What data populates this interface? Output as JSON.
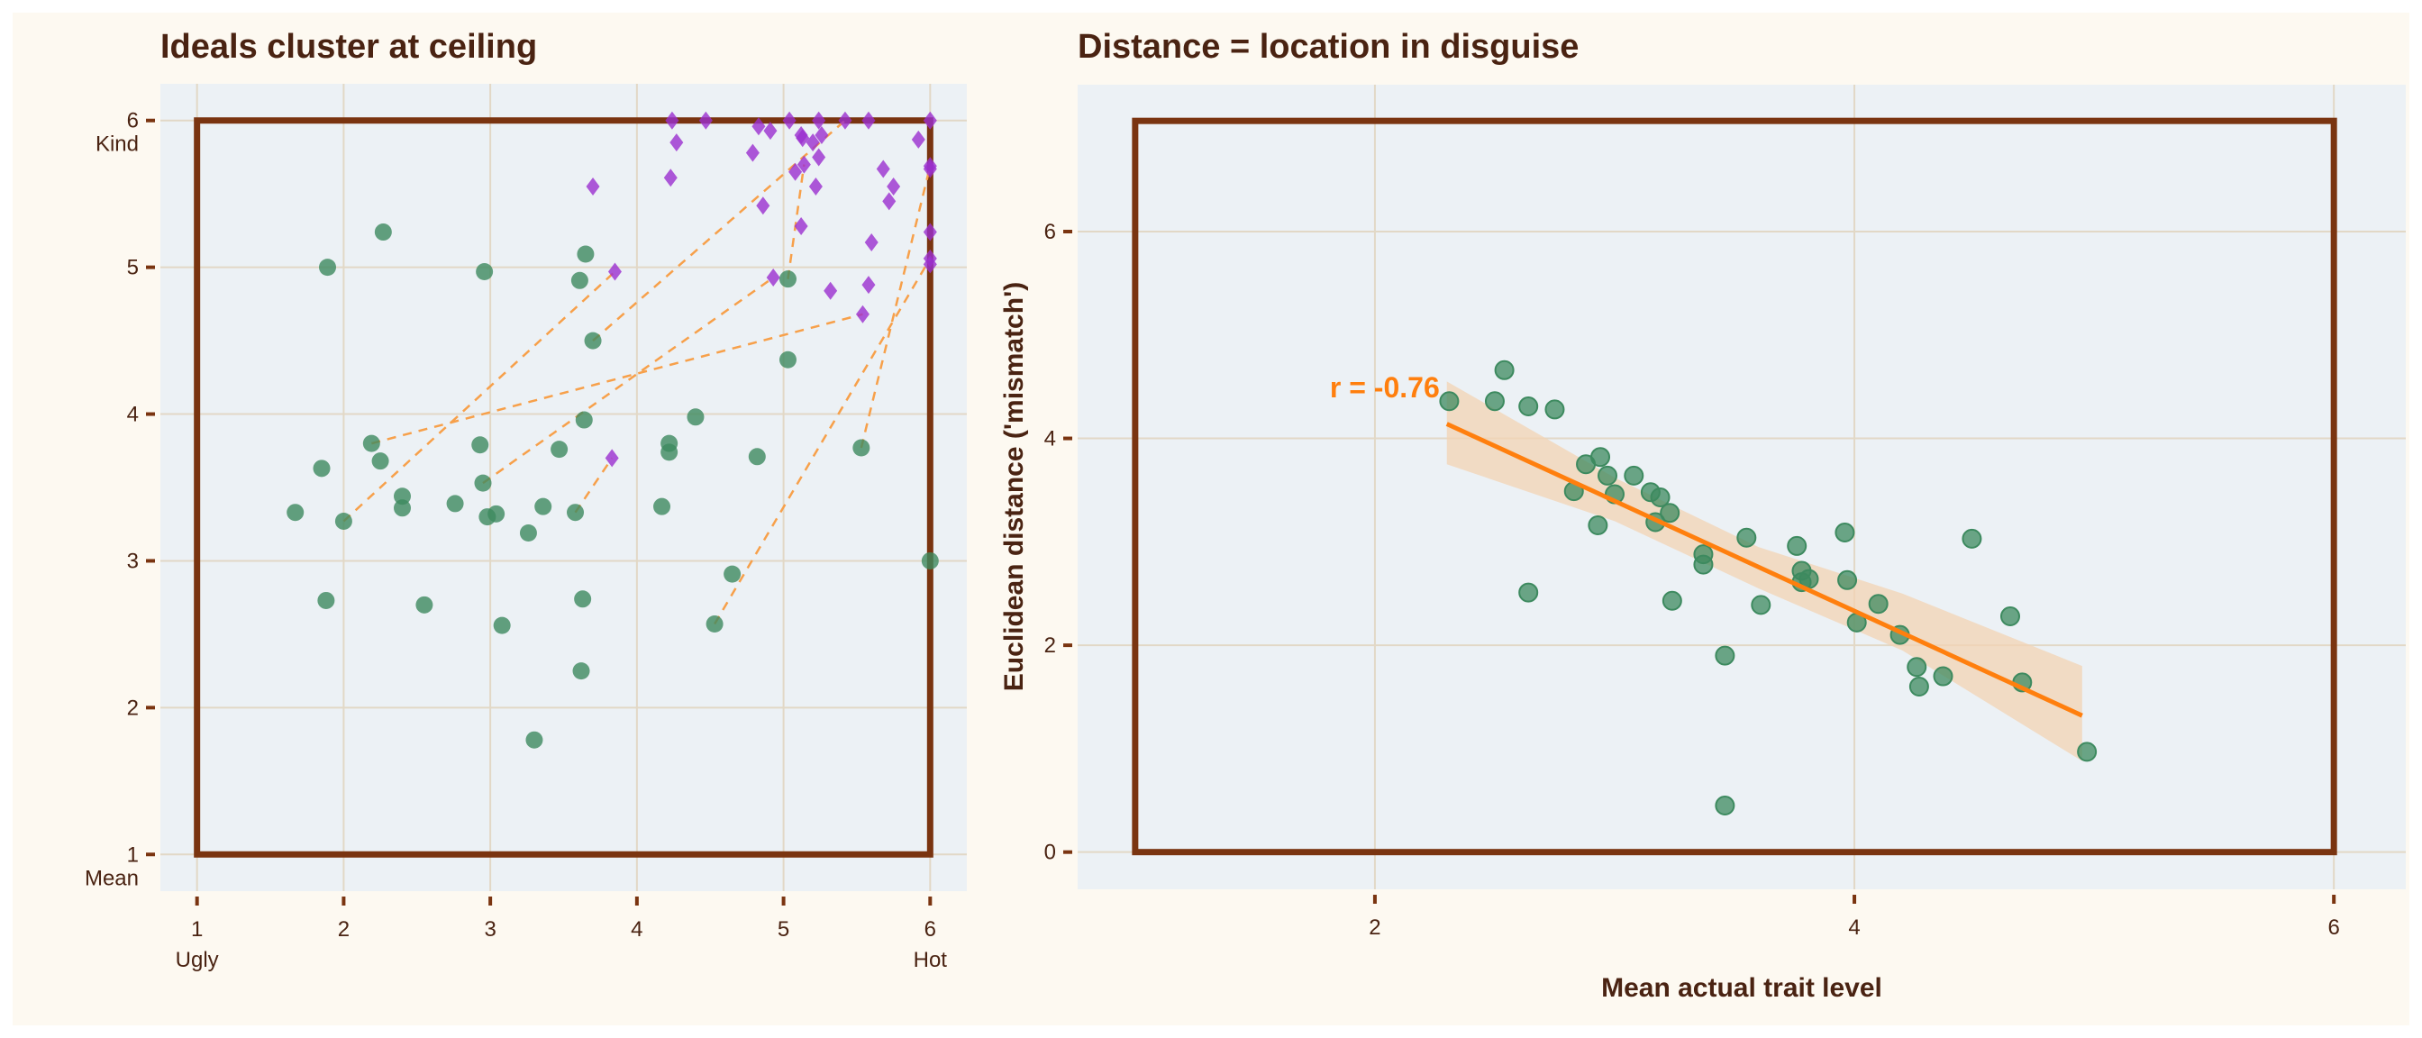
{
  "colors": {
    "background": "#fdf9f1",
    "panel": "#ecf1f5",
    "grid": "#e2d8c6",
    "box": "#7a3410",
    "actual": "#3d8a5f",
    "ideal": "#9b30d0",
    "link": "#f7a04a",
    "fit": "#ff7f0e",
    "band": "#f3d3b3",
    "text": "#4a2312"
  },
  "chart_data": [
    {
      "type": "scatter",
      "title": "Ideals cluster at ceiling",
      "xlim": [
        0.75,
        6.25
      ],
      "ylim": [
        0.75,
        6.25
      ],
      "x_ticks": [
        "1",
        "2",
        "3",
        "4",
        "5",
        "6"
      ],
      "y_ticks": [
        "1",
        "2",
        "3",
        "4",
        "5",
        "6"
      ],
      "x_tick_sublabels": {
        "low": "Ugly",
        "high": "Hot"
      },
      "y_tick_sublabels": {
        "low": "Mean",
        "high": "Kind"
      },
      "grid": true,
      "box": {
        "x": [
          1,
          6
        ],
        "y": [
          1,
          6
        ]
      },
      "actual_points": [
        [
          2.27,
          5.24
        ],
        [
          1.89,
          5.0
        ],
        [
          2.96,
          4.97
        ],
        [
          3.65,
          5.09
        ],
        [
          3.61,
          4.91
        ],
        [
          3.7,
          4.5
        ],
        [
          5.03,
          4.92
        ],
        [
          5.03,
          4.37
        ],
        [
          4.4,
          3.98
        ],
        [
          3.64,
          3.96
        ],
        [
          2.19,
          3.8
        ],
        [
          2.93,
          3.79
        ],
        [
          3.47,
          3.76
        ],
        [
          4.22,
          3.8
        ],
        [
          4.22,
          3.74
        ],
        [
          4.82,
          3.71
        ],
        [
          5.53,
          3.77
        ],
        [
          1.85,
          3.63
        ],
        [
          2.25,
          3.68
        ],
        [
          2.95,
          3.53
        ],
        [
          1.67,
          3.33
        ],
        [
          2.0,
          3.27
        ],
        [
          2.4,
          3.44
        ],
        [
          2.4,
          3.36
        ],
        [
          2.76,
          3.39
        ],
        [
          2.98,
          3.3
        ],
        [
          3.04,
          3.32
        ],
        [
          3.36,
          3.37
        ],
        [
          3.26,
          3.19
        ],
        [
          3.58,
          3.33
        ],
        [
          4.17,
          3.37
        ],
        [
          4.65,
          2.91
        ],
        [
          6.0,
          3.0
        ],
        [
          1.88,
          2.73
        ],
        [
          2.55,
          2.7
        ],
        [
          3.63,
          2.74
        ],
        [
          3.08,
          2.56
        ],
        [
          4.53,
          2.57
        ],
        [
          3.62,
          2.25
        ],
        [
          3.3,
          1.78
        ]
      ],
      "ideal_points": [
        [
          4.24,
          6.0
        ],
        [
          4.47,
          6.0
        ],
        [
          5.04,
          6.0
        ],
        [
          5.24,
          6.0
        ],
        [
          5.42,
          6.0
        ],
        [
          5.58,
          6.0
        ],
        [
          6.0,
          6.0
        ],
        [
          4.27,
          5.85
        ],
        [
          4.83,
          5.96
        ],
        [
          4.91,
          5.93
        ],
        [
          4.79,
          5.78
        ],
        [
          5.12,
          5.9
        ],
        [
          5.13,
          5.88
        ],
        [
          5.2,
          5.85
        ],
        [
          5.26,
          5.9
        ],
        [
          5.24,
          5.75
        ],
        [
          5.14,
          5.7
        ],
        [
          5.08,
          5.65
        ],
        [
          4.23,
          5.61
        ],
        [
          3.7,
          5.55
        ],
        [
          5.22,
          5.55
        ],
        [
          5.68,
          5.67
        ],
        [
          5.75,
          5.55
        ],
        [
          5.72,
          5.45
        ],
        [
          4.86,
          5.42
        ],
        [
          5.92,
          5.87
        ],
        [
          6.0,
          5.69
        ],
        [
          6.0,
          5.67
        ],
        [
          5.12,
          5.28
        ],
        [
          5.6,
          5.17
        ],
        [
          6.0,
          5.24
        ],
        [
          6.0,
          5.06
        ],
        [
          6.0,
          5.02
        ],
        [
          3.85,
          4.97
        ],
        [
          4.93,
          4.93
        ],
        [
          5.32,
          4.84
        ],
        [
          5.58,
          4.88
        ],
        [
          5.54,
          4.68
        ],
        [
          3.83,
          3.7
        ]
      ],
      "links": [
        [
          [
            2.0,
            3.27
          ],
          [
            3.85,
            4.97
          ]
        ],
        [
          [
            2.19,
            3.8
          ],
          [
            5.54,
            4.68
          ]
        ],
        [
          [
            2.95,
            3.53
          ],
          [
            4.93,
            4.93
          ]
        ],
        [
          [
            3.7,
            4.5
          ],
          [
            5.42,
            6.0
          ]
        ],
        [
          [
            3.58,
            3.33
          ],
          [
            3.83,
            3.7
          ]
        ],
        [
          [
            4.53,
            2.57
          ],
          [
            6.0,
            5.06
          ]
        ],
        [
          [
            5.53,
            3.77
          ],
          [
            6.0,
            5.69
          ]
        ],
        [
          [
            5.03,
            4.92
          ],
          [
            5.14,
            5.7
          ]
        ]
      ]
    },
    {
      "type": "scatter",
      "title": "Distance = location in disguise",
      "xlabel": "Mean actual trait level",
      "ylabel": "Euclidean distance ('mismatch')",
      "xlim": [
        0.76,
        6.3
      ],
      "ylim": [
        -0.36,
        7.42
      ],
      "x_ticks": [
        "2",
        "4",
        "6"
      ],
      "y_ticks": [
        "0",
        "2",
        "4",
        "6"
      ],
      "grid": true,
      "box": {
        "x": [
          1,
          6
        ],
        "y": [
          0,
          7.07
        ]
      },
      "annotation": "r = -0.76",
      "points": [
        [
          2.31,
          4.36
        ],
        [
          2.5,
          4.36
        ],
        [
          2.54,
          4.66
        ],
        [
          2.64,
          4.31
        ],
        [
          2.75,
          4.28
        ],
        [
          2.64,
          2.51
        ],
        [
          2.88,
          3.75
        ],
        [
          2.83,
          3.49
        ],
        [
          2.94,
          3.82
        ],
        [
          2.97,
          3.64
        ],
        [
          3.0,
          3.46
        ],
        [
          2.93,
          3.16
        ],
        [
          3.08,
          3.64
        ],
        [
          3.15,
          3.48
        ],
        [
          3.19,
          3.43
        ],
        [
          3.17,
          3.19
        ],
        [
          3.23,
          3.28
        ],
        [
          3.24,
          2.43
        ],
        [
          3.37,
          2.88
        ],
        [
          3.37,
          2.78
        ],
        [
          3.55,
          3.04
        ],
        [
          3.61,
          2.39
        ],
        [
          3.46,
          1.9
        ],
        [
          3.46,
          0.45
        ],
        [
          3.76,
          2.96
        ],
        [
          3.78,
          2.72
        ],
        [
          3.78,
          2.61
        ],
        [
          3.81,
          2.64
        ],
        [
          3.96,
          3.09
        ],
        [
          3.97,
          2.63
        ],
        [
          4.01,
          2.22
        ],
        [
          4.1,
          2.4
        ],
        [
          4.19,
          2.1
        ],
        [
          4.26,
          1.79
        ],
        [
          4.27,
          1.6
        ],
        [
          4.37,
          1.7
        ],
        [
          4.49,
          3.03
        ],
        [
          4.65,
          2.28
        ],
        [
          4.7,
          1.64
        ],
        [
          4.97,
          0.97
        ]
      ],
      "fit_line": [
        [
          2.3,
          4.14
        ],
        [
          4.95,
          1.32
        ]
      ],
      "band": {
        "x": [
          2.3,
          3.0,
          3.6,
          4.2,
          4.95
        ],
        "lower": [
          3.75,
          3.2,
          2.55,
          1.95,
          0.88
        ],
        "upper": [
          4.55,
          3.62,
          2.95,
          2.5,
          1.8
        ]
      }
    }
  ]
}
